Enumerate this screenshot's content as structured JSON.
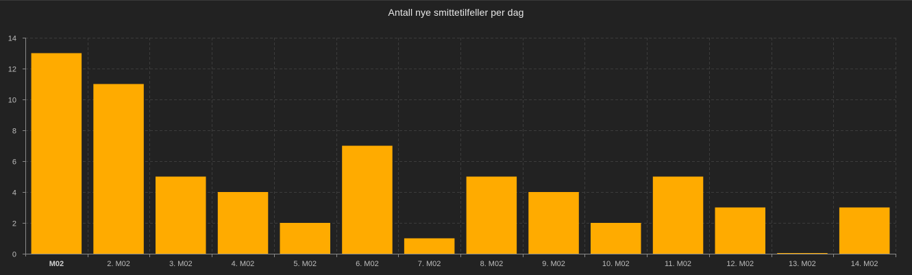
{
  "chart_data": {
    "type": "bar",
    "title": "Antall nye smittetilfeller per dag",
    "xlabel": "",
    "ylabel": "",
    "categories": [
      "M02",
      "2. M02",
      "3. M02",
      "4. M02",
      "5. M02",
      "6. M02",
      "7. M02",
      "8. M02",
      "9. M02",
      "10. M02",
      "11. M02",
      "12. M02",
      "13. M02",
      "14. M02"
    ],
    "values": [
      13,
      11,
      5,
      4,
      2,
      7,
      1,
      5,
      4,
      2,
      5,
      3,
      0,
      3
    ],
    "ylim": [
      0,
      14
    ],
    "yticks": [
      "0",
      "2",
      "4",
      "6",
      "8",
      "10",
      "12",
      "14"
    ],
    "grid": true,
    "legend": "none",
    "colors": {
      "background": "#222222",
      "bar": "#ffab00",
      "grid": "#3c3c3c",
      "axis": "#8a8a8a",
      "text": "#bdbdbd",
      "title": "#e8e8e8"
    }
  }
}
